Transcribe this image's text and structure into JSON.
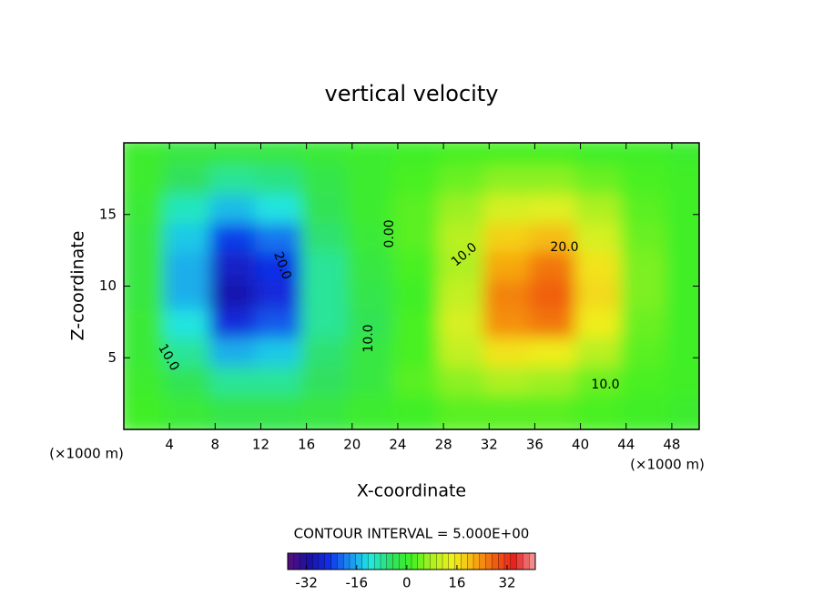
{
  "chart_data": {
    "type": "contour",
    "title": "vertical velocity",
    "xlabel": "X-coordinate",
    "ylabel": "Z-coordinate",
    "x_unit_left": "(×1000 m)",
    "x_unit_right": "(×1000 m)",
    "contour_interval": "CONTOUR INTERVAL = 5.000E+00",
    "xlim": [
      0,
      50.4
    ],
    "ylim": [
      0,
      20
    ],
    "xticks": [
      4,
      8,
      12,
      16,
      20,
      24,
      28,
      32,
      36,
      40,
      44,
      48
    ],
    "yticks": [
      5,
      10,
      15
    ],
    "x": [
      2,
      6,
      10,
      14,
      18,
      22,
      26,
      30,
      34,
      38,
      42,
      46,
      50
    ],
    "y": [
      19,
      17,
      15,
      13,
      11,
      9,
      7,
      5,
      3,
      1
    ],
    "z": [
      [
        0,
        -2,
        -2,
        -2,
        -1,
        0,
        1,
        2,
        2,
        2,
        1,
        1,
        0
      ],
      [
        0,
        -5,
        -8,
        -7,
        -3,
        0,
        2,
        4,
        6,
        6,
        4,
        2,
        1
      ],
      [
        -1,
        -10,
        -15,
        -12,
        -4,
        0,
        3,
        7,
        12,
        13,
        8,
        3,
        1
      ],
      [
        -2,
        -14,
        -24,
        -20,
        -6,
        -1,
        3,
        9,
        18,
        20,
        12,
        4,
        1
      ],
      [
        -2,
        -16,
        -28,
        -25,
        -8,
        -2,
        2,
        8,
        22,
        26,
        16,
        5,
        1
      ],
      [
        -2,
        -16,
        -30,
        -26,
        -8,
        -3,
        1,
        10,
        25,
        28,
        17,
        5,
        1
      ],
      [
        -1,
        -12,
        -26,
        -22,
        -8,
        -4,
        2,
        12,
        24,
        26,
        15,
        4,
        1
      ],
      [
        -1,
        -8,
        -16,
        -14,
        -6,
        -2,
        2,
        10,
        16,
        15,
        9,
        3,
        1
      ],
      [
        0,
        -4,
        -8,
        -8,
        -5,
        -2,
        3,
        6,
        8,
        7,
        4,
        2,
        1
      ],
      [
        1,
        -1,
        -3,
        -3,
        -2,
        0,
        1,
        3,
        3,
        3,
        2,
        1,
        0
      ]
    ],
    "clim": [
      -38,
      41
    ],
    "cticks": [
      -32,
      -16,
      0,
      16,
      32
    ],
    "colormap": [
      "#5a0f78",
      "#1a10a0",
      "#1030e8",
      "#1a90f0",
      "#20e8e0",
      "#30e060",
      "#40f020",
      "#b0f020",
      "#f0f020",
      "#f8b010",
      "#f06010",
      "#e82020",
      "#f0a0a0"
    ],
    "contour_labels": [
      "0.00",
      "10.0",
      "20.0",
      "10.0",
      "20.0",
      "10.0",
      "10.0"
    ]
  }
}
